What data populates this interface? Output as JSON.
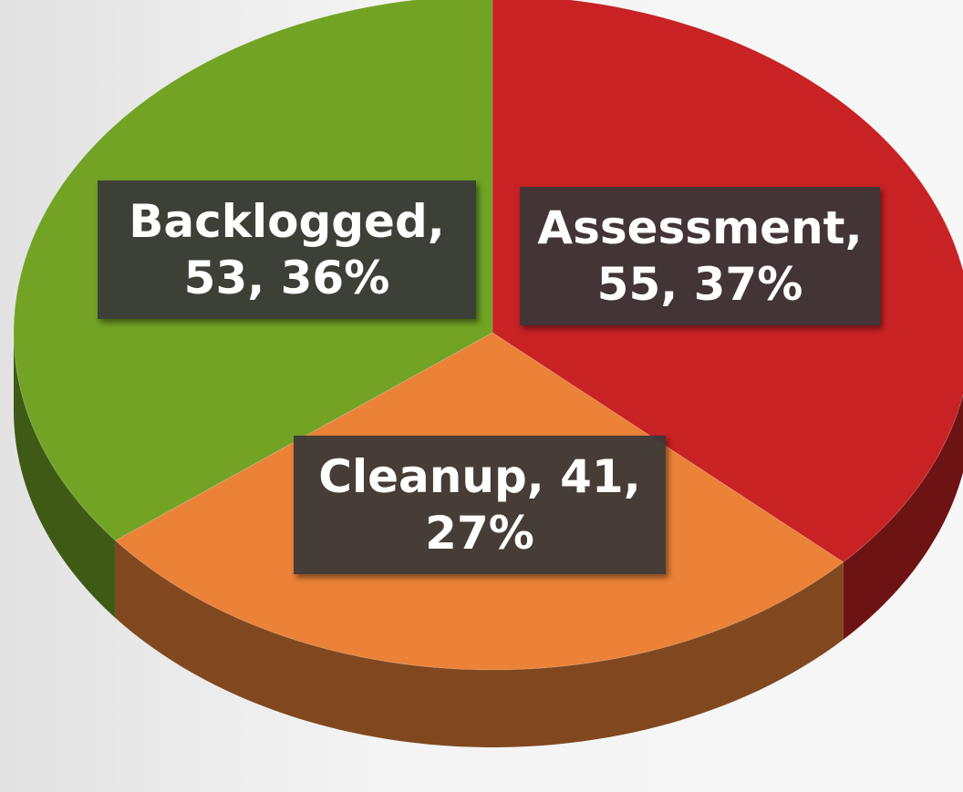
{
  "chart_data": {
    "type": "pie",
    "categories": [
      "Assessment",
      "Cleanup",
      "Backlogged"
    ],
    "values": [
      55,
      41,
      53
    ],
    "value_labels": [
      "Assessment, 55, 37%",
      "Cleanup, 41, 27%",
      "Backlogged, 53, 36%"
    ],
    "colors": [
      "#c82224",
      "#eb8238",
      "#72a325"
    ],
    "start_angle": 0,
    "direction": "clockwise",
    "style": "3d"
  }
}
